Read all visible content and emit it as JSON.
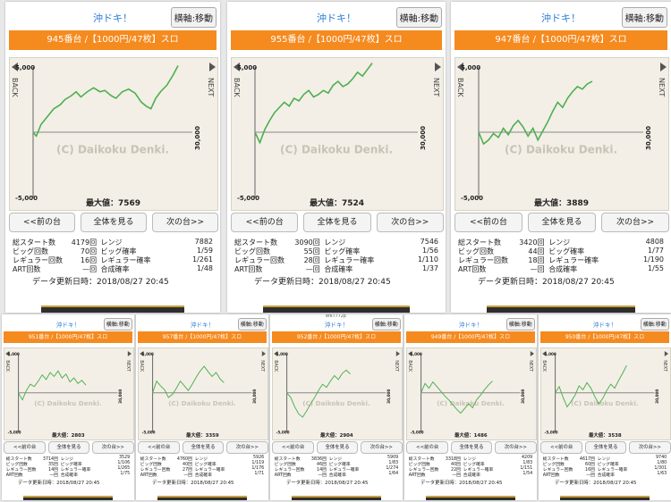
{
  "panels": [
    {
      "title": "沖ドキ！",
      "move_button": "横軸:移動",
      "machine": "945番台 /【1000円/47枚】スロ",
      "y_top": "5,000",
      "y_bottom": "-5,000",
      "x_end": "30,000",
      "back": "BACK",
      "next": "NEXT",
      "watermark": "(C) Daikoku Denki.",
      "max_label": "最大値：",
      "max_value": "7569",
      "prev": "<<前の台",
      "all": "全体を見る",
      "next_btn": "次の台>>",
      "stats": [
        [
          "総スタート数",
          "4179回",
          "レンジ",
          "7882"
        ],
        [
          "ビッグ回数",
          "70回",
          "ビッグ確率",
          "1/59"
        ],
        [
          "レギュラー回数",
          "16回",
          "レギュラー確率",
          "1/261"
        ],
        [
          "ART回数",
          "—回",
          "合成確率",
          "1/48"
        ]
      ],
      "updated": "データ更新日時：2018/08/27 20:45",
      "caption": "",
      "line": [
        [
          0,
          0
        ],
        [
          2,
          -300
        ],
        [
          5,
          600
        ],
        [
          9,
          1200
        ],
        [
          13,
          1800
        ],
        [
          17,
          2100
        ],
        [
          20,
          2500
        ],
        [
          24,
          2800
        ],
        [
          27,
          3100
        ],
        [
          30,
          2700
        ],
        [
          34,
          3100
        ],
        [
          38,
          3400
        ],
        [
          42,
          3100
        ],
        [
          45,
          3200
        ],
        [
          49,
          2800
        ],
        [
          52,
          2600
        ],
        [
          56,
          3100
        ],
        [
          60,
          3300
        ],
        [
          64,
          3000
        ],
        [
          68,
          2300
        ],
        [
          71,
          2000
        ],
        [
          74,
          1800
        ],
        [
          77,
          2600
        ],
        [
          80,
          3100
        ],
        [
          84,
          3600
        ],
        [
          88,
          4400
        ],
        [
          91,
          5100
        ]
      ]
    },
    {
      "title": "沖ドキ！",
      "move_button": "横軸:移動",
      "machine": "955番台 /【1000円/47枚】スロ",
      "y_top": "5,000",
      "y_bottom": "-5,000",
      "x_end": "30,000",
      "back": "BACK",
      "next": "NEXT",
      "watermark": "(C) Daikoku Denki.",
      "max_label": "最大値：",
      "max_value": "7524",
      "prev": "<<前の台",
      "all": "全体を見る",
      "next_btn": "次の台>>",
      "stats": [
        [
          "総スタート数",
          "3090回",
          "レンジ",
          "7546"
        ],
        [
          "ビッグ回数",
          "55回",
          "ビッグ確率",
          "1/56"
        ],
        [
          "レギュラー回数",
          "28回",
          "レギュラー確率",
          "1/110"
        ],
        [
          "ART回数",
          "—回",
          "合成確率",
          "1/37"
        ]
      ],
      "updated": "データ更新日時：2018/08/27 20:45",
      "caption": "",
      "line": [
        [
          0,
          0
        ],
        [
          3,
          -800
        ],
        [
          6,
          200
        ],
        [
          9,
          900
        ],
        [
          12,
          1500
        ],
        [
          15,
          1900
        ],
        [
          18,
          2300
        ],
        [
          21,
          2000
        ],
        [
          24,
          2600
        ],
        [
          27,
          2400
        ],
        [
          30,
          2900
        ],
        [
          33,
          3200
        ],
        [
          36,
          2700
        ],
        [
          39,
          2900
        ],
        [
          42,
          3200
        ],
        [
          45,
          3000
        ],
        [
          48,
          3600
        ],
        [
          51,
          3900
        ],
        [
          54,
          3500
        ],
        [
          57,
          3700
        ],
        [
          60,
          4100
        ],
        [
          63,
          4600
        ],
        [
          66,
          4300
        ],
        [
          69,
          4800
        ],
        [
          72,
          5300
        ]
      ]
    },
    {
      "title": "沖ドキ！",
      "move_button": "横軸:移動",
      "machine": "947番台 /【1000円/47枚】スロ",
      "y_top": "5,000",
      "y_bottom": "-5,000",
      "x_end": "30,000",
      "back": "BACK",
      "next": "NEXT",
      "watermark": "(C) Daikoku Denki.",
      "max_label": "最大値：",
      "max_value": "3889",
      "prev": "<<前の台",
      "all": "全体を見る",
      "next_btn": "次の台>>",
      "stats": [
        [
          "総スタート数",
          "3420回",
          "レンジ",
          "4808"
        ],
        [
          "ビッグ回数",
          "44回",
          "ビッグ確率",
          "1/77"
        ],
        [
          "レギュラー回数",
          "18回",
          "レギュラー確率",
          "1/190"
        ],
        [
          "ART回数",
          "—回",
          "合成確率",
          "1/55"
        ]
      ],
      "updated": "データ更新日時：2018/08/27 20:45",
      "caption": "",
      "line": [
        [
          0,
          0
        ],
        [
          3,
          -900
        ],
        [
          6,
          -600
        ],
        [
          9,
          -100
        ],
        [
          12,
          -400
        ],
        [
          15,
          300
        ],
        [
          18,
          -200
        ],
        [
          21,
          500
        ],
        [
          24,
          900
        ],
        [
          27,
          400
        ],
        [
          30,
          -300
        ],
        [
          33,
          300
        ],
        [
          36,
          -600
        ],
        [
          39,
          100
        ],
        [
          42,
          800
        ],
        [
          45,
          1600
        ],
        [
          48,
          2300
        ],
        [
          51,
          1900
        ],
        [
          54,
          2600
        ],
        [
          57,
          3100
        ],
        [
          60,
          3500
        ],
        [
          63,
          3300
        ],
        [
          66,
          3700
        ],
        [
          69,
          3900
        ]
      ]
    },
    {
      "title": "沖ドキ！",
      "move_button": "横軸:移動",
      "machine": "951番台 /【1000円/47枚】スロ",
      "y_top": "5,000",
      "y_bottom": "-5,000",
      "x_end": "30,000",
      "back": "BACK",
      "next": "NEXT",
      "watermark": "(C) Daikoku Denki.",
      "max_label": "最大値：",
      "max_value": "2803",
      "prev": "<<前の台",
      "all": "全体を見る",
      "next_btn": "次の台>>",
      "stats": [
        [
          "総スタート数",
          "3714回",
          "レンジ",
          "3529"
        ],
        [
          "ビッグ回数",
          "35回",
          "ビッグ確率",
          "1/106"
        ],
        [
          "レギュラー回数",
          "14回",
          "レギュラー確率",
          "1/265"
        ],
        [
          "ART回数",
          "—回",
          "合成確率",
          "1/75"
        ]
      ],
      "updated": "データ更新日時：2018/08/27 20:45",
      "caption": "",
      "line": [
        [
          0,
          0
        ],
        [
          4,
          -900
        ],
        [
          8,
          300
        ],
        [
          12,
          1100
        ],
        [
          16,
          800
        ],
        [
          20,
          1500
        ],
        [
          24,
          2300
        ],
        [
          28,
          1700
        ],
        [
          32,
          2600
        ],
        [
          36,
          2100
        ],
        [
          40,
          2800
        ],
        [
          44,
          1900
        ],
        [
          48,
          2400
        ],
        [
          52,
          1400
        ],
        [
          56,
          1900
        ],
        [
          60,
          1200
        ],
        [
          64,
          1600
        ],
        [
          68,
          1000
        ]
      ]
    },
    {
      "title": "沖ドキ！",
      "move_button": "横軸:移動",
      "machine": "957番台 /【1000円/47枚】スロ",
      "y_top": "5,000",
      "y_bottom": "-5,000",
      "x_end": "30,000",
      "back": "BACK",
      "next": "NEXT",
      "watermark": "(C) Daikoku Denki.",
      "max_label": "最大値：",
      "max_value": "3359",
      "prev": "<<前の台",
      "all": "全体を見る",
      "next_btn": "次の台>>",
      "stats": [
        [
          "総スタート数",
          "4760回",
          "レンジ",
          "5926"
        ],
        [
          "ビッグ回数",
          "40回",
          "ビッグ確率",
          "1/119"
        ],
        [
          "レギュラー回数",
          "27回",
          "レギュラー確率",
          "1/176"
        ],
        [
          "ART回数",
          "—回",
          "合成確率",
          "1/71"
        ]
      ],
      "updated": "データ更新日時：2018/08/27 20:45",
      "caption": "",
      "line": [
        [
          0,
          0
        ],
        [
          4,
          1500
        ],
        [
          8,
          900
        ],
        [
          12,
          400
        ],
        [
          16,
          -600
        ],
        [
          20,
          -200
        ],
        [
          24,
          600
        ],
        [
          28,
          1500
        ],
        [
          32,
          900
        ],
        [
          36,
          300
        ],
        [
          40,
          1100
        ],
        [
          44,
          2000
        ],
        [
          48,
          2800
        ],
        [
          52,
          3400
        ],
        [
          56,
          2700
        ],
        [
          60,
          2100
        ],
        [
          64,
          2600
        ],
        [
          68,
          1800
        ],
        [
          72,
          1300
        ]
      ]
    },
    {
      "title": "沖ドキ！",
      "move_button": "横軸:移動",
      "machine": "952番台 /【1000円/47枚】スロ",
      "y_top": "5,000",
      "y_bottom": "-5,000",
      "x_end": "30,000",
      "back": "BACK",
      "next": "NEXT",
      "watermark": "(C) Daikoku Denki.",
      "max_label": "最大値：",
      "max_value": "2904",
      "prev": "<<前の台",
      "all": "全体を見る",
      "next_btn": "次の台>>",
      "stats": [
        [
          "総スタート数",
          "3836回",
          "レンジ",
          "5909"
        ],
        [
          "ビッグ回数",
          "46回",
          "ビッグ確率",
          "1/83"
        ],
        [
          "レギュラー回数",
          "14回",
          "レギュラー確率",
          "1/274"
        ],
        [
          "ART回数",
          "—回",
          "合成確率",
          "1/64"
        ]
      ],
      "updated": "データ更新日時：2018/08/27 20:45",
      "caption": "efe7772p",
      "line": [
        [
          0,
          0
        ],
        [
          4,
          -600
        ],
        [
          8,
          -1800
        ],
        [
          12,
          -2700
        ],
        [
          16,
          -3100
        ],
        [
          20,
          -2300
        ],
        [
          24,
          -1400
        ],
        [
          28,
          -600
        ],
        [
          32,
          300
        ],
        [
          36,
          1100
        ],
        [
          40,
          700
        ],
        [
          44,
          1500
        ],
        [
          48,
          2200
        ],
        [
          52,
          1700
        ],
        [
          56,
          2500
        ],
        [
          60,
          2900
        ],
        [
          64,
          2400
        ]
      ]
    },
    {
      "title": "沖ドキ！",
      "move_button": "横軸:移動",
      "machine": "949番台 /【1000円/47枚】スロ",
      "y_top": "5,000",
      "y_bottom": "-5,000",
      "x_end": "30,000",
      "back": "BACK",
      "next": "NEXT",
      "watermark": "(C) Daikoku Denki.",
      "max_label": "最大値：",
      "max_value": "1486",
      "prev": "<<前の台",
      "all": "全体を見る",
      "next_btn": "次の台>>",
      "stats": [
        [
          "総スタート数",
          "3318回",
          "レンジ",
          "4209"
        ],
        [
          "ビッグ回数",
          "40回",
          "ビッグ確率",
          "1/83"
        ],
        [
          "レギュラー回数",
          "22回",
          "レギュラー確率",
          "1/151"
        ],
        [
          "ART回数",
          "—回",
          "合成確率",
          "1/54"
        ]
      ],
      "updated": "データ更新日時：2018/08/27 20:45",
      "caption": "",
      "line": [
        [
          0,
          0
        ],
        [
          4,
          1200
        ],
        [
          8,
          600
        ],
        [
          12,
          1400
        ],
        [
          16,
          800
        ],
        [
          20,
          200
        ],
        [
          24,
          -400
        ],
        [
          28,
          -900
        ],
        [
          32,
          -1500
        ],
        [
          36,
          -2100
        ],
        [
          40,
          -2600
        ],
        [
          44,
          -2000
        ],
        [
          48,
          -1400
        ],
        [
          52,
          -1900
        ],
        [
          56,
          -900
        ],
        [
          60,
          -300
        ],
        [
          64,
          400
        ],
        [
          68,
          1000
        ],
        [
          72,
          1500
        ]
      ]
    },
    {
      "title": "沖ドキ！",
      "move_button": "横軸:移動",
      "machine": "950番台 /【1000円/47枚】スロ",
      "y_top": "5,000",
      "y_bottom": "-5,000",
      "x_end": "30,000",
      "back": "BACK",
      "next": "NEXT",
      "watermark": "(C) Daikoku Denki.",
      "max_label": "最大値：",
      "max_value": "3538",
      "prev": "<<前の台",
      "all": "全体を見る",
      "next_btn": "次の台>>",
      "stats": [
        [
          "総スタート数",
          "4617回",
          "レンジ",
          "9740"
        ],
        [
          "ビッグ回数",
          "60回",
          "ビッグ確率",
          "1/80"
        ],
        [
          "レギュラー回数",
          "16回",
          "レギュラー確率",
          "1/301"
        ],
        [
          "ART回数",
          "—回",
          "合成確率",
          "1/63"
        ]
      ],
      "updated": "データ更新日時：2018/08/27 20:45",
      "caption": "",
      "line": [
        [
          0,
          0
        ],
        [
          4,
          800
        ],
        [
          8,
          -600
        ],
        [
          12,
          -1800
        ],
        [
          16,
          -1100
        ],
        [
          20,
          -300
        ],
        [
          24,
          900
        ],
        [
          28,
          400
        ],
        [
          32,
          1300
        ],
        [
          36,
          600
        ],
        [
          40,
          -500
        ],
        [
          44,
          -1400
        ],
        [
          48,
          -700
        ],
        [
          52,
          300
        ],
        [
          56,
          1100
        ],
        [
          60,
          600
        ],
        [
          64,
          1600
        ],
        [
          68,
          2500
        ],
        [
          72,
          3500
        ]
      ]
    }
  ]
}
